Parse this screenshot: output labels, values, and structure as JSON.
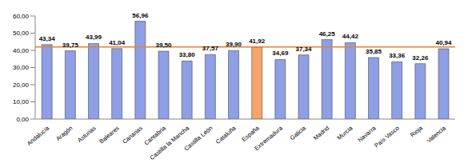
{
  "chart_data": {
    "type": "bar",
    "categories": [
      "Andalucía",
      "Aragón",
      "Asturias",
      "Baleares",
      "Canarias",
      "Cantabria",
      "Castilla la Mancha",
      "Castilla León",
      "Cataluña",
      "España",
      "Extremadura",
      "Galicia",
      "Madrid",
      "Murcia",
      "Navarra",
      "País Vasco",
      "Rioja",
      "Valencia"
    ],
    "values": [
      43.34,
      39.75,
      43.99,
      41.04,
      56.96,
      39.5,
      33.8,
      37.57,
      39.9,
      41.92,
      34.69,
      37.34,
      46.25,
      44.42,
      35.85,
      33.36,
      32.26,
      40.94
    ],
    "value_labels": [
      "43,34",
      "39,75",
      "43,99",
      "41,04",
      "56,96",
      "39,50",
      "33,80",
      "37,57",
      "39,90",
      "41,92",
      "34,69",
      "37,34",
      "46,25",
      "44,42",
      "35,85",
      "33,36",
      "32,26",
      "40,94"
    ],
    "colors": [
      "#8e9fe6",
      "#8e9fe6",
      "#8e9fe6",
      "#8e9fe6",
      "#8e9fe6",
      "#8e9fe6",
      "#8e9fe6",
      "#8e9fe6",
      "#8e9fe6",
      "#f5a46b",
      "#8e9fe6",
      "#8e9fe6",
      "#8e9fe6",
      "#8e9fe6",
      "#8e9fe6",
      "#8e9fe6",
      "#8e9fe6",
      "#8e9fe6"
    ],
    "reference_line": 41.92,
    "ylim": [
      0,
      60
    ],
    "yticks": [
      {
        "value": 0,
        "label": "0,00"
      },
      {
        "value": 10,
        "label": "10,00"
      },
      {
        "value": 20,
        "label": "20,00"
      },
      {
        "value": 30,
        "label": "30,00"
      },
      {
        "value": 40,
        "label": "40,00"
      },
      {
        "value": 50,
        "label": "50,00"
      },
      {
        "value": 60,
        "label": "60,00"
      }
    ],
    "grid": false,
    "data_labels": true
  }
}
